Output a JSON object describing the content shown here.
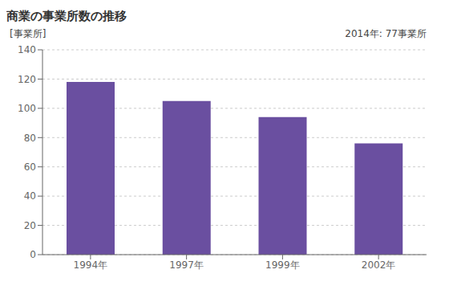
{
  "chart_data": {
    "type": "bar",
    "title": "商業の事業所数の推移",
    "ylabel": "[事業所]",
    "annotation": "2014年: 77事業所",
    "categories": [
      "1994年",
      "1997年",
      "1999年",
      "2002年"
    ],
    "values": [
      118,
      105,
      94,
      76
    ],
    "color": "#6a4fa0",
    "ylim": [
      0,
      140
    ],
    "yticks": [
      0,
      20,
      40,
      60,
      80,
      100,
      120,
      140
    ],
    "grid": true
  }
}
